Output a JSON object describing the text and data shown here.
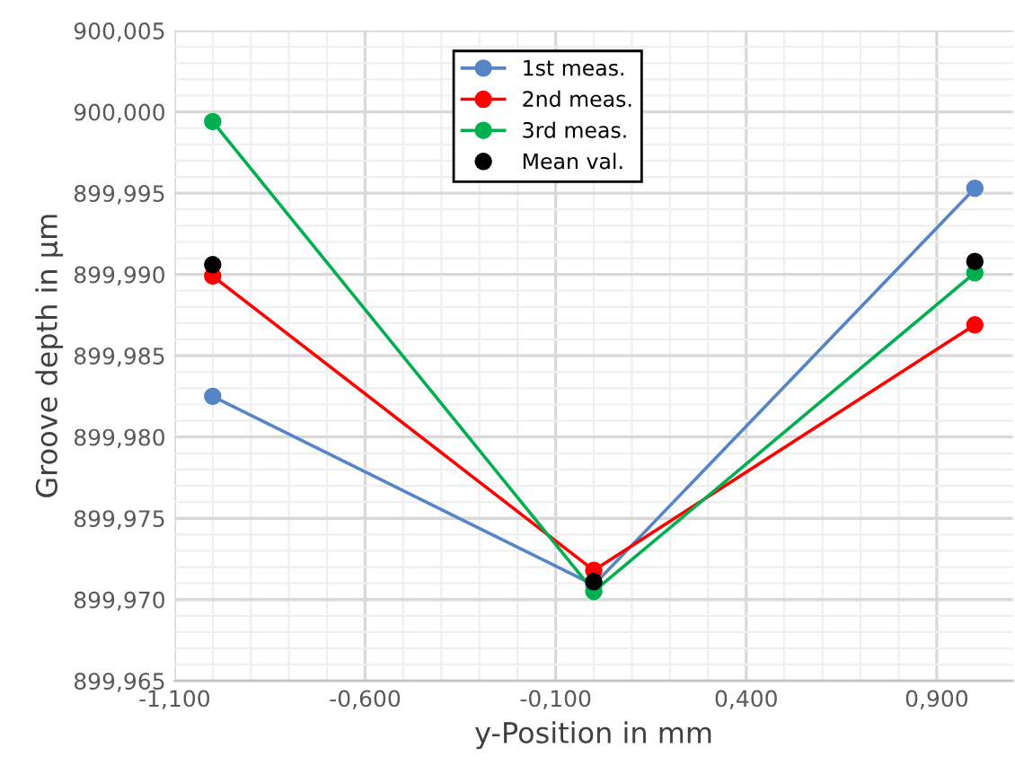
{
  "chart_data": {
    "type": "line",
    "xlabel": "y-Position in mm",
    "ylabel": "Groove depth in µm",
    "x": [
      -1.0,
      0.0,
      1.0
    ],
    "series": [
      {
        "name": "1st meas.",
        "color": "#5585c5",
        "values": [
          899.9825,
          899.9709,
          899.9953
        ]
      },
      {
        "name": "2nd meas.",
        "color": "#ff0000",
        "values": [
          899.9899,
          899.9718,
          899.9869
        ]
      },
      {
        "name": "3rd meas.",
        "color": "#00b050",
        "values": [
          899.9994,
          899.9705,
          899.9901
        ]
      },
      {
        "name": "Mean val.",
        "color": "#000000",
        "type": "scatter",
        "values": [
          899.9906,
          899.9711,
          899.9908
        ]
      }
    ],
    "marker": "circle",
    "xlim": [
      -1.1,
      1.1
    ],
    "xticks": [
      {
        "value": -1.1,
        "label": "-1,100"
      },
      {
        "value": -0.6,
        "label": "-0,600"
      },
      {
        "value": -0.1,
        "label": "-0,100"
      },
      {
        "value": 0.4,
        "label": "0,400"
      },
      {
        "value": 0.9,
        "label": "0,900"
      }
    ],
    "ylim": [
      899.965,
      900.005
    ],
    "yticks": [
      {
        "value": 899.965,
        "label": "899,965"
      },
      {
        "value": 899.97,
        "label": "899,970"
      },
      {
        "value": 899.975,
        "label": "899,975"
      },
      {
        "value": 899.98,
        "label": "899,980"
      },
      {
        "value": 899.985,
        "label": "899,985"
      },
      {
        "value": 899.99,
        "label": "899,990"
      },
      {
        "value": 899.995,
        "label": "899,995"
      },
      {
        "value": 900.0,
        "label": "900,000"
      },
      {
        "value": 900.005,
        "label": "900,005"
      }
    ],
    "grid": true,
    "legend": "top"
  }
}
